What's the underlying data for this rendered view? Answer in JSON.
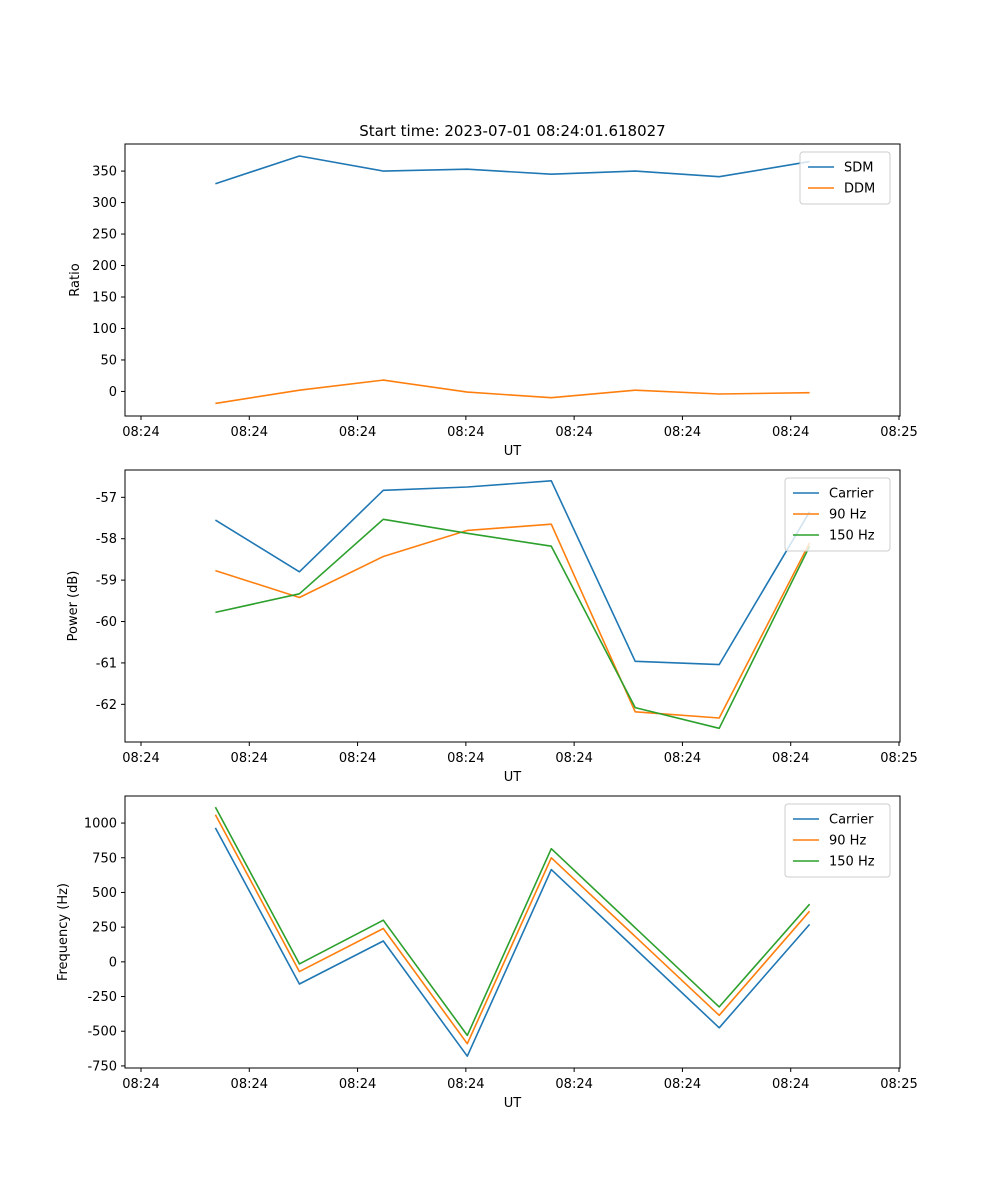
{
  "chart_data": [
    {
      "type": "line",
      "title": "Start time: 2023-07-01 08:24:01.618027",
      "xlabel": "UT",
      "ylabel": "Ratio",
      "x_tick_labels": [
        "08:24",
        "08:24",
        "08:24",
        "08:24",
        "08:24",
        "08:24",
        "08:24",
        "08:25"
      ],
      "x": [
        0.7,
        1.35,
        2.0,
        2.65,
        3.3,
        3.95,
        4.6,
        5.3
      ],
      "xlim": [
        0,
        6
      ],
      "ylim": [
        -39,
        393
      ],
      "yticks": [
        0,
        50,
        100,
        150,
        200,
        250,
        300,
        350
      ],
      "grid": false,
      "legend": "top-right",
      "series": [
        {
          "name": "SDM",
          "color": "#1f77b4",
          "values": [
            330,
            374,
            350,
            353,
            345,
            350,
            341,
            365
          ]
        },
        {
          "name": "DDM",
          "color": "#ff7f0e",
          "values": [
            -19,
            2,
            18,
            -1,
            -10,
            2,
            -4,
            -2
          ]
        }
      ]
    },
    {
      "type": "line",
      "title": "",
      "xlabel": "UT",
      "ylabel": "Power (dB)",
      "x_tick_labels": [
        "08:24",
        "08:24",
        "08:24",
        "08:24",
        "08:24",
        "08:24",
        "08:24",
        "08:25"
      ],
      "x": [
        0.7,
        1.35,
        2.0,
        2.65,
        3.3,
        3.95,
        4.6,
        5.3
      ],
      "xlim": [
        0,
        6
      ],
      "ylim": [
        -62.91,
        -56.34
      ],
      "yticks": [
        -62,
        -61,
        -60,
        -59,
        -58,
        -57
      ],
      "grid": false,
      "legend": "top-right",
      "series": [
        {
          "name": "Carrier",
          "color": "#1f77b4",
          "values": [
            -57.55,
            -58.8,
            -56.83,
            -56.75,
            -56.6,
            -60.96,
            -61.04,
            -57.35
          ]
        },
        {
          "name": "90 Hz",
          "color": "#ff7f0e",
          "values": [
            -58.77,
            -59.42,
            -58.43,
            -57.8,
            -57.65,
            -62.18,
            -62.33,
            -58.1
          ]
        },
        {
          "name": "150 Hz",
          "color": "#2ca02c",
          "values": [
            -59.78,
            -59.33,
            -57.53,
            -57.87,
            -58.18,
            -62.08,
            -62.58,
            -58.18
          ]
        }
      ]
    },
    {
      "type": "line",
      "title": "",
      "xlabel": "UT",
      "ylabel": "Frequency (Hz)",
      "x_tick_labels": [
        "08:24",
        "08:24",
        "08:24",
        "08:24",
        "08:24",
        "08:24",
        "08:24",
        "08:25"
      ],
      "x": [
        0.7,
        1.35,
        2.0,
        2.65,
        3.3,
        4.6,
        5.3
      ],
      "xlim": [
        0,
        6
      ],
      "ylim": [
        -765,
        1195
      ],
      "yticks": [
        -750,
        -500,
        -250,
        0,
        250,
        500,
        750,
        1000
      ],
      "grid": false,
      "legend": "top-right",
      "series": [
        {
          "name": "Carrier",
          "color": "#1f77b4",
          "values": [
            965,
            -160,
            150,
            -680,
            665,
            -475,
            270
          ]
        },
        {
          "name": "90 Hz",
          "color": "#ff7f0e",
          "values": [
            1060,
            -70,
            240,
            -590,
            750,
            -385,
            365
          ]
        },
        {
          "name": "150 Hz",
          "color": "#2ca02c",
          "values": [
            1115,
            -15,
            300,
            -530,
            815,
            -325,
            415
          ]
        }
      ]
    }
  ]
}
